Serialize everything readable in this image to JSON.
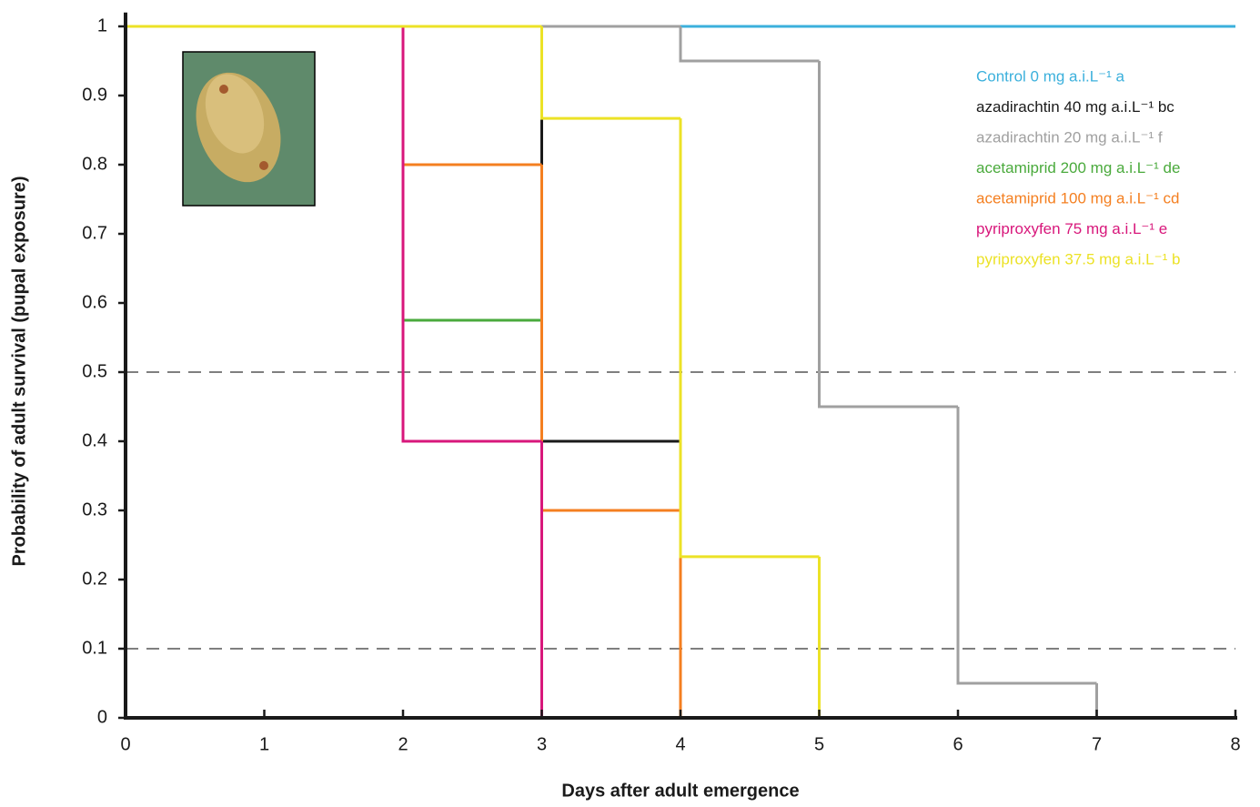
{
  "chart_data": {
    "type": "step",
    "x_label": "Days after adult emergence",
    "y_label": "Probability of adult survival (pupal exposure)",
    "xlim": [
      0,
      8
    ],
    "xticks": [
      0,
      1,
      2,
      3,
      4,
      5,
      6,
      7,
      8
    ],
    "ylim": [
      0,
      1.02
    ],
    "yticks": [
      0,
      0.1,
      0.2,
      0.3,
      0.4,
      0.5,
      0.6,
      0.7,
      0.8,
      0.9,
      1
    ],
    "reference_lines": [
      0.5,
      0.1
    ],
    "legend": "top-right",
    "series": [
      {
        "name": "Control 0 mg a.i.L⁻¹ a",
        "color": "#3bb0dc",
        "x": [
          0
        ],
        "values": [
          1
        ]
      },
      {
        "name": "azadirachtin 40 mg a.i.L⁻¹ bc",
        "color": "#1a1a1a",
        "x": [
          0,
          3,
          4
        ],
        "values": [
          1,
          0.4,
          0
        ]
      },
      {
        "name": "azadirachtin 20 mg a.i.L⁻¹ f",
        "color": "#a0a0a0",
        "x": [
          0,
          4,
          5,
          6,
          7
        ],
        "values": [
          1,
          0.95,
          0.45,
          0.05,
          0
        ]
      },
      {
        "name": "acetamiprid 200 mg a.i.L⁻¹ de",
        "color": "#4aaa3c",
        "x": [
          0,
          2,
          3
        ],
        "values": [
          1,
          0.575,
          0
        ]
      },
      {
        "name": "acetamiprid 100 mg a.i.L⁻¹ cd",
        "color": "#f47f20",
        "x": [
          0,
          2,
          3,
          4
        ],
        "values": [
          1,
          0.8,
          0.3,
          0
        ]
      },
      {
        "name": "pyriproxyfen 75 mg a.i.L⁻¹ e",
        "color": "#d8177b",
        "x": [
          0,
          2,
          3
        ],
        "values": [
          1,
          0.4,
          0
        ]
      },
      {
        "name": "pyriproxyfen 37.5 mg a.i.L⁻¹ b",
        "color": "#ece226",
        "x": [
          0,
          3,
          4,
          5
        ],
        "values": [
          1,
          0.867,
          0.233,
          0
        ]
      }
    ]
  }
}
